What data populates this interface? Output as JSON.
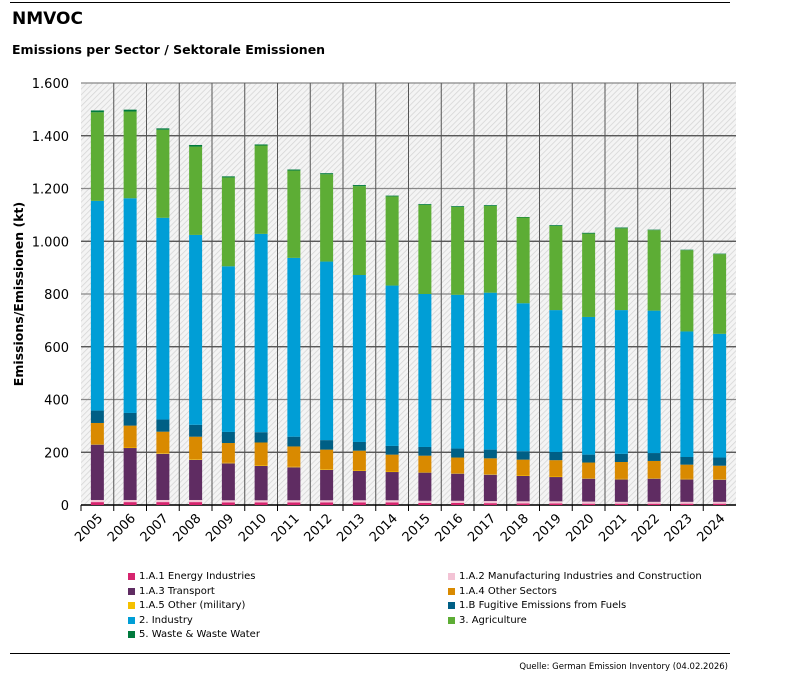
{
  "title": "NMVOC",
  "subtitle": "Emissions per Sector / Sektorale Emissionen",
  "source": "Quelle: German Emission Inventory (04.02.2026)",
  "chart_data": {
    "type": "bar",
    "stacked": true,
    "ylabel": "Emissions/Emissionen (kt)",
    "xlabel": "",
    "ylim": [
      0,
      1600
    ],
    "yticks": [
      0,
      200,
      400,
      600,
      800,
      1000,
      1200,
      1400,
      1600
    ],
    "ytick_labels": [
      "0",
      "200",
      "400",
      "600",
      "800",
      "1.000",
      "1.200",
      "1.400",
      "1.600"
    ],
    "grid": true,
    "legend_position": "bottom",
    "categories": [
      "2005",
      "2006",
      "2007",
      "2008",
      "2009",
      "2010",
      "2011",
      "2012",
      "2013",
      "2014",
      "2015",
      "2016",
      "2017",
      "2018",
      "2019",
      "2020",
      "2021",
      "2022",
      "2023",
      "2024"
    ],
    "series": [
      {
        "name": "1.A.1 Energy Industries",
        "color": "#d6246e",
        "values": [
          11,
          11,
          11,
          11,
          10,
          10,
          10,
          10,
          10,
          10,
          8,
          8,
          7,
          6,
          6,
          5,
          5,
          5,
          5,
          5
        ]
      },
      {
        "name": "1.A.2 Manufacturing Industries and Construction",
        "color": "#f3c3d5",
        "values": [
          8,
          8,
          8,
          8,
          8,
          8,
          8,
          8,
          8,
          8,
          8,
          8,
          8,
          8,
          8,
          8,
          7,
          7,
          7,
          7
        ]
      },
      {
        "name": "1.A.3 Transport",
        "color": "#5f2c62",
        "values": [
          210,
          197,
          175,
          152,
          140,
          130,
          125,
          115,
          111,
          107,
          107,
          103,
          100,
          96,
          92,
          87,
          85,
          88,
          85,
          84
        ]
      },
      {
        "name": "1.A.5 Other (military)",
        "color": "#f5c000",
        "values": [
          2,
          2,
          2,
          2,
          2,
          2,
          2,
          2,
          2,
          2,
          2,
          2,
          2,
          2,
          2,
          2,
          2,
          2,
          2,
          2
        ]
      },
      {
        "name": "1.A.4 Other Sectors",
        "color": "#d98a00",
        "values": [
          80,
          83,
          82,
          86,
          75,
          87,
          77,
          75,
          75,
          64,
          62,
          59,
          60,
          60,
          62,
          59,
          64,
          65,
          54,
          51
        ]
      },
      {
        "name": "1.B Fugitive Emissions from Fuels",
        "color": "#005f85",
        "values": [
          47,
          48,
          46,
          45,
          42,
          39,
          37,
          36,
          33,
          33,
          33,
          34,
          33,
          32,
          31,
          30,
          31,
          30,
          29,
          31
        ]
      },
      {
        "name": "2. Industry",
        "color": "#009ed6",
        "values": [
          795,
          814,
          765,
          720,
          628,
          752,
          678,
          677,
          633,
          608,
          580,
          583,
          595,
          561,
          538,
          522,
          545,
          540,
          476,
          469
        ]
      },
      {
        "name": "3. Agriculture",
        "color": "#5dad35",
        "values": [
          336,
          329,
          334,
          335,
          337,
          335,
          331,
          331,
          337,
          338,
          338,
          333,
          329,
          325,
          319,
          316,
          310,
          305,
          308,
          302
        ]
      },
      {
        "name": "5. Waste & Waste Water",
        "color": "#007a3d",
        "values": [
          7,
          7,
          5,
          6,
          4,
          4,
          4,
          4,
          4,
          3,
          3,
          3,
          3,
          2,
          3,
          3,
          3,
          2,
          2,
          2
        ]
      }
    ],
    "legend_order": [
      0,
      1,
      2,
      4,
      3,
      5,
      6,
      7,
      8
    ]
  }
}
